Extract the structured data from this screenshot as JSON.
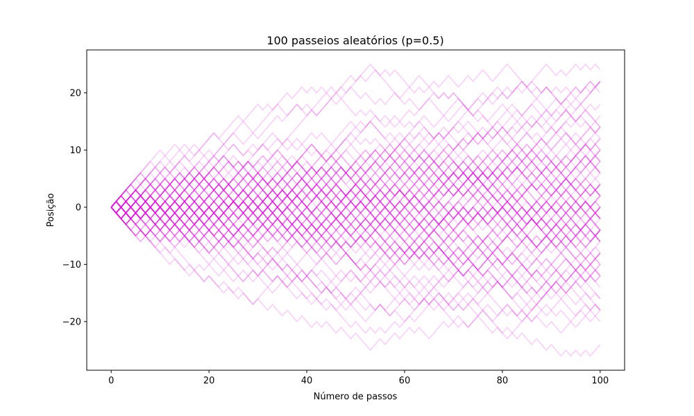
{
  "chart_data": {
    "type": "line",
    "title": "100 passeios aleatórios (p=0.5)",
    "xlabel": "Número de passos",
    "ylabel": "Posição",
    "xlim": [
      -5,
      105
    ],
    "ylim": [
      -28.5,
      27.5
    ],
    "xticks": [
      0,
      20,
      40,
      60,
      80,
      100
    ],
    "yticks": [
      -20,
      -10,
      0,
      10,
      20
    ],
    "grid": false,
    "legend": "none",
    "line_color": "#ee00ee",
    "line_alpha": 0.2,
    "n_walks": 100,
    "n_steps": 100,
    "p": 0.5,
    "step_size": 1,
    "start_position": 0,
    "series": [
      {
        "values": [
          0,
          1,
          2,
          3,
          4,
          5,
          6,
          7,
          8,
          7,
          6,
          7,
          8,
          9,
          10,
          11,
          10,
          9,
          10,
          11,
          12,
          13,
          12,
          11,
          12,
          13,
          14,
          15,
          14,
          13,
          14,
          15,
          16,
          17,
          18,
          17,
          16,
          17,
          18,
          17,
          18,
          17,
          18,
          19,
          20,
          21,
          20,
          21,
          20,
          21,
          22,
          23,
          22,
          23,
          24,
          23,
          24,
          23,
          24,
          23,
          22,
          21,
          22,
          23,
          22,
          21,
          22,
          21,
          22,
          23,
          22,
          21,
          22,
          23,
          22,
          23,
          24,
          23,
          22,
          23,
          24,
          25,
          24,
          23,
          22,
          21,
          20,
          21,
          20,
          21,
          20,
          19,
          18,
          19,
          20,
          21,
          20,
          21,
          22,
          21,
          22
        ]
      },
      {
        "values": [
          0,
          -1,
          -2,
          -3,
          -4,
          -5,
          -6,
          -5,
          -6,
          -7,
          -8,
          -9,
          -10,
          -9,
          -10,
          -11,
          -10,
          -11,
          -12,
          -13,
          -12,
          -13,
          -14,
          -13,
          -14,
          -15,
          -14,
          -15,
          -16,
          -17,
          -16,
          -17,
          -18,
          -17,
          -18,
          -19,
          -18,
          -19,
          -20,
          -19,
          -20,
          -21,
          -20,
          -21,
          -20,
          -21,
          -22,
          -21,
          -22,
          -23,
          -22,
          -23,
          -24,
          -25,
          -24,
          -23,
          -24,
          -23,
          -22,
          -23,
          -22,
          -21,
          -22,
          -21,
          -22,
          -23,
          -22,
          -21,
          -20,
          -21,
          -20,
          -21,
          -20,
          -21,
          -20,
          -19,
          -20,
          -21,
          -22,
          -21,
          -22,
          -21,
          -22,
          -23,
          -22,
          -23,
          -24,
          -23,
          -24,
          -25,
          -24,
          -25,
          -26,
          -25,
          -26,
          -25,
          -26,
          -25,
          -26,
          -25,
          -24
        ]
      },
      {
        "values": [
          0,
          1,
          0,
          1,
          2,
          3,
          4,
          5,
          6,
          7,
          8,
          9,
          8,
          7,
          8,
          9,
          10,
          11,
          10,
          11,
          12,
          13,
          12,
          13,
          14,
          15,
          16,
          15,
          16,
          17,
          18,
          17,
          18,
          17,
          18,
          19,
          20,
          19,
          20,
          21,
          20,
          21,
          20,
          21,
          20,
          19,
          20,
          19,
          20,
          21,
          20,
          19,
          20,
          19,
          18,
          19,
          18,
          19,
          20,
          19,
          20,
          21,
          20,
          21,
          20,
          21,
          20,
          19,
          20,
          19,
          20,
          19,
          18,
          17,
          18,
          19,
          18,
          19,
          18,
          19,
          20,
          21,
          20,
          21,
          22,
          21,
          22,
          21,
          20,
          21,
          20,
          21,
          20,
          21,
          20,
          21,
          20,
          21,
          20,
          21,
          20
        ]
      },
      {
        "values": [
          0,
          -1,
          -2,
          -3,
          -2,
          -3,
          -4,
          -5,
          -6,
          -7,
          -8,
          -7,
          -8,
          -9,
          -10,
          -11,
          -12,
          -11,
          -12,
          -13,
          -12,
          -13,
          -14,
          -15,
          -14,
          -15,
          -16,
          -15,
          -16,
          -17,
          -16,
          -15,
          -14,
          -15,
          -14,
          -13,
          -14,
          -13,
          -12,
          -11,
          -12,
          -11,
          -12,
          -13,
          -14,
          -15,
          -14,
          -15,
          -16,
          -17,
          -16,
          -17,
          -18,
          -17,
          -18,
          -17,
          -18,
          -19,
          -18,
          -19,
          -20,
          -19,
          -18,
          -17,
          -16,
          -17,
          -16,
          -17,
          -18,
          -17,
          -18,
          -17,
          -18,
          -17,
          -16,
          -17,
          -18,
          -17,
          -18,
          -19,
          -18,
          -17,
          -18,
          -19,
          -18,
          -19,
          -20,
          -19,
          -20,
          -21,
          -20,
          -21,
          -22,
          -21,
          -20,
          -21,
          -20,
          -19,
          -18,
          -19,
          -18
        ]
      },
      {
        "values": [
          0,
          1,
          2,
          3,
          4,
          5,
          6,
          7,
          8,
          9,
          10,
          9,
          10,
          11,
          10,
          9,
          8,
          9,
          10,
          9,
          10,
          9,
          10,
          11,
          12,
          13,
          12,
          11,
          12,
          13,
          12,
          13,
          14,
          15,
          16,
          15,
          16,
          17,
          18,
          17,
          16,
          17,
          16,
          17,
          18,
          19,
          18,
          19,
          18,
          17,
          16,
          17,
          16,
          17,
          16,
          15,
          16,
          15,
          14,
          15,
          16,
          17,
          16,
          17,
          18,
          19,
          18,
          17,
          16,
          15,
          16,
          17,
          18,
          17,
          16,
          17,
          16,
          15,
          16,
          17,
          18,
          17,
          16,
          15,
          16,
          15,
          14,
          15,
          16,
          17,
          16,
          15,
          16,
          17,
          18,
          17,
          18,
          17,
          16,
          15,
          14
        ]
      },
      {
        "values": [
          0,
          -1,
          -2,
          -3,
          -4,
          -5,
          -4,
          -5,
          -6,
          -7,
          -6,
          -7,
          -8,
          -7,
          -8,
          -9,
          -10,
          -11,
          -10,
          -11,
          -10,
          -11,
          -12,
          -11,
          -12,
          -13,
          -12,
          -13,
          -12,
          -11,
          -12,
          -13,
          -14,
          -13,
          -12,
          -13,
          -14,
          -13,
          -12,
          -13,
          -12,
          -13,
          -14,
          -13,
          -14,
          -15,
          -16,
          -15,
          -16,
          -15,
          -16,
          -15,
          -14,
          -15,
          -14,
          -13,
          -14,
          -13,
          -12,
          -13,
          -14,
          -13,
          -14,
          -15,
          -16,
          -17,
          -16,
          -15,
          -16,
          -17,
          -16,
          -15,
          -16,
          -17,
          -16,
          -15,
          -14,
          -15,
          -14,
          -13,
          -14,
          -15,
          -16,
          -15,
          -16,
          -17,
          -16,
          -17,
          -18,
          -17,
          -18,
          -17,
          -16,
          -17,
          -18,
          -19,
          -18,
          -19,
          -20,
          -19,
          -20
        ]
      }
    ]
  }
}
